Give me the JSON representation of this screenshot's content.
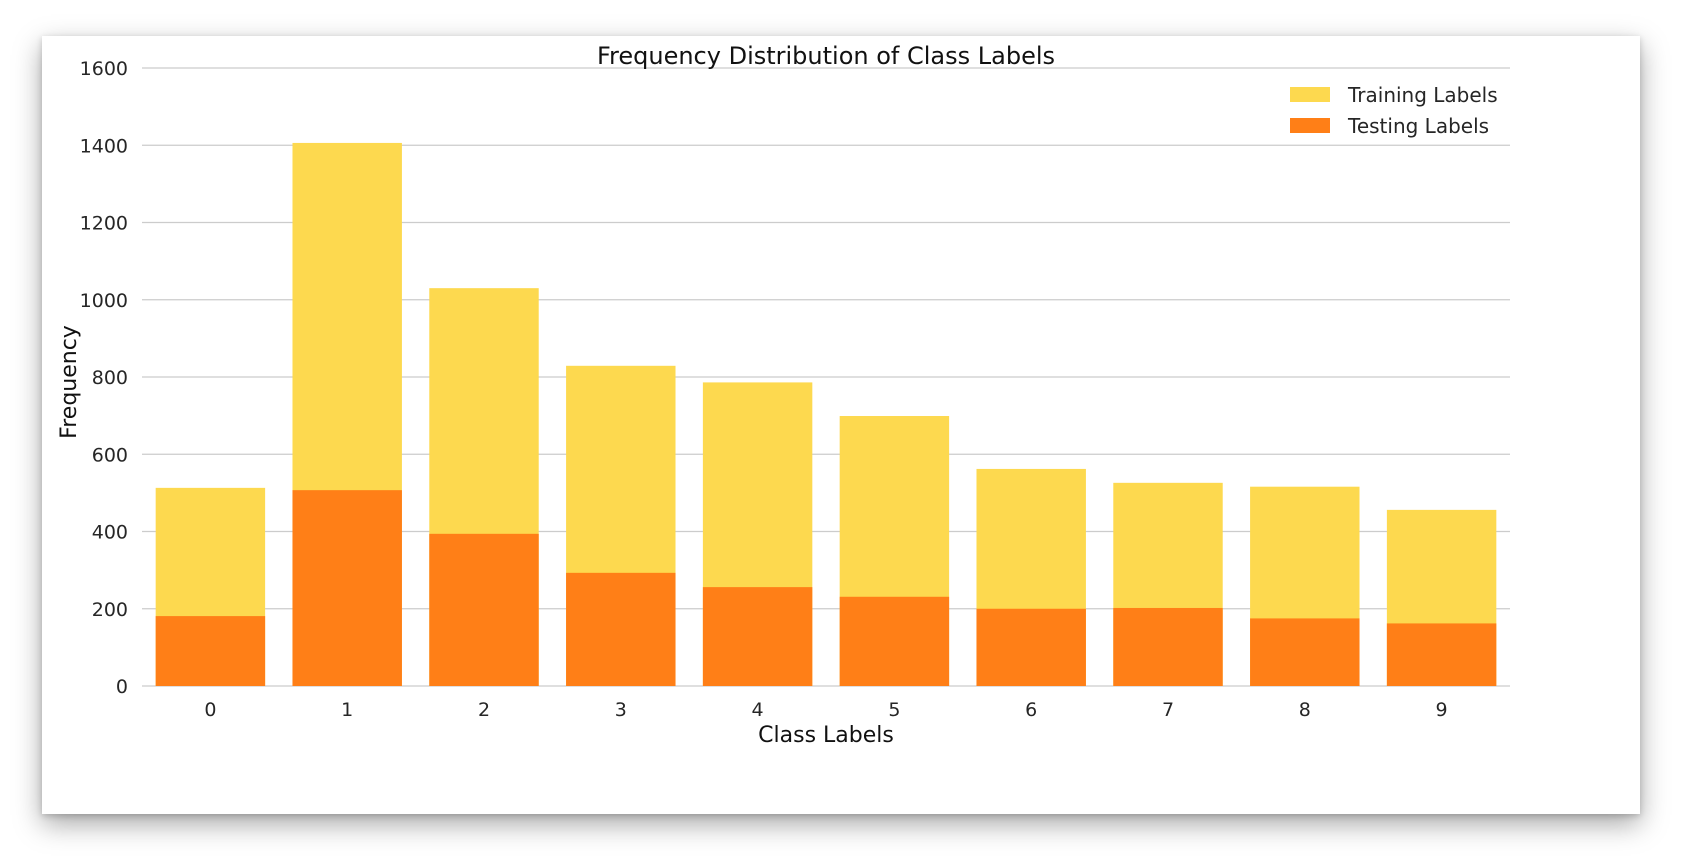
{
  "chart_data": {
    "type": "bar",
    "title": "Frequency Distribution of Class Labels",
    "xlabel": "Class Labels",
    "ylabel": "Frequency",
    "categories": [
      "0",
      "1",
      "2",
      "3",
      "4",
      "5",
      "6",
      "7",
      "8",
      "9"
    ],
    "ylim": [
      0,
      1600
    ],
    "yticks": [
      "0",
      "200",
      "400",
      "600",
      "800",
      "1000",
      "1200",
      "1400",
      "1600"
    ],
    "grid": true,
    "legend_position": "top-right",
    "overlay": true,
    "series": [
      {
        "name": "Training Labels",
        "color": "#fdd94f",
        "values": [
          513,
          1406,
          1030,
          829,
          786,
          699,
          562,
          526,
          516,
          456
        ]
      },
      {
        "name": "Testing Labels",
        "color": "#ff7f17",
        "values": [
          181,
          507,
          394,
          293,
          256,
          231,
          200,
          202,
          175,
          162
        ]
      }
    ]
  }
}
